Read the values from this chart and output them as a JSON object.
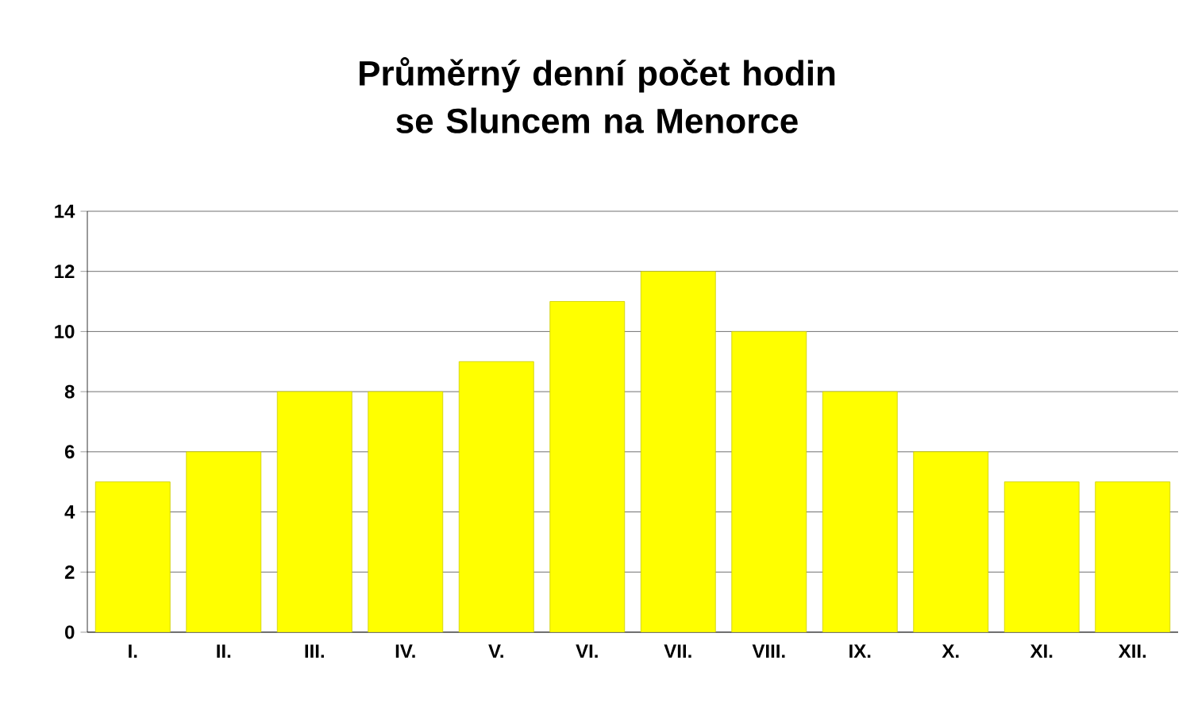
{
  "chart_data": {
    "type": "bar",
    "title": "Průměrný denní počet hodin se Sluncem na Menorce",
    "categories": [
      "I.",
      "II.",
      "III.",
      "IV.",
      "V.",
      "VI.",
      "VII.",
      "VIII.",
      "IX.",
      "X.",
      "XI.",
      "XII."
    ],
    "values": [
      5,
      6,
      8,
      8,
      9,
      11,
      12,
      10,
      8,
      6,
      5,
      5
    ],
    "color": "#ffff00",
    "ylim": [
      0,
      14
    ],
    "yticks": [
      0,
      2,
      4,
      6,
      8,
      10,
      12,
      14
    ],
    "grid": "y"
  }
}
